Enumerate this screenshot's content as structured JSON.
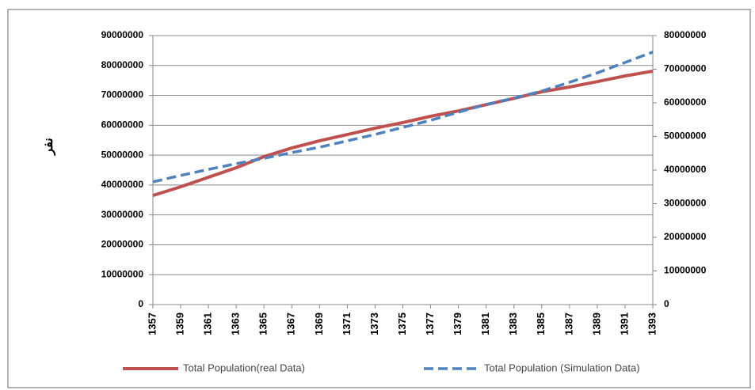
{
  "chart_data": {
    "type": "line",
    "y_label": "نفر",
    "x": [
      1357,
      1359,
      1361,
      1363,
      1365,
      1367,
      1369,
      1371,
      1373,
      1375,
      1377,
      1379,
      1381,
      1383,
      1385,
      1387,
      1389,
      1391,
      1393
    ],
    "xlim": [
      1357,
      1393
    ],
    "xticks": [
      1357,
      1359,
      1361,
      1363,
      1365,
      1367,
      1369,
      1371,
      1373,
      1375,
      1377,
      1379,
      1381,
      1383,
      1385,
      1387,
      1389,
      1391,
      1393
    ],
    "ylim": [
      0,
      90000000
    ],
    "yticks": [
      0,
      10000000,
      20000000,
      30000000,
      40000000,
      50000000,
      60000000,
      70000000,
      80000000,
      90000000
    ],
    "y2lim": [
      0,
      80000000
    ],
    "y2ticks": [
      0,
      10000000,
      20000000,
      30000000,
      40000000,
      50000000,
      60000000,
      70000000,
      80000000
    ],
    "grid": true,
    "legend": "bottom",
    "series": [
      {
        "name": "Total Population(real Data)",
        "color": "#c0504d",
        "dash": "solid",
        "values": [
          36500000,
          39400000,
          42600000,
          45800000,
          49500000,
          52400000,
          54800000,
          56900000,
          59000000,
          60900000,
          63000000,
          64800000,
          66900000,
          69000000,
          71200000,
          72800000,
          74600000,
          76500000,
          78100000
        ]
      },
      {
        "name": "Total Population (Simulation Data)",
        "color": "#4f81bd",
        "dash": "dashed",
        "axis": "y2",
        "values": [
          36500000,
          38400000,
          40200000,
          41900000,
          43500000,
          45200000,
          46800000,
          48700000,
          50600000,
          52700000,
          54800000,
          57200000,
          59500000,
          61400000,
          63500000,
          66100000,
          68900000,
          72000000,
          75100000
        ]
      }
    ]
  }
}
